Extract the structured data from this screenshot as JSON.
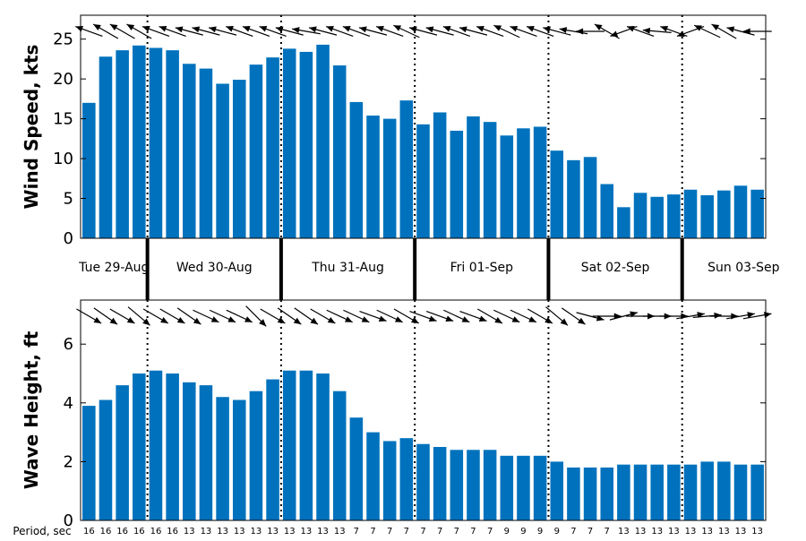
{
  "chart_data": [
    {
      "type": "bar",
      "ylabel": "Wind Speed, kts",
      "ylim": [
        0,
        28
      ],
      "yticks": [
        0,
        5,
        10,
        15,
        20,
        25
      ],
      "values": [
        17.0,
        22.8,
        23.6,
        24.2,
        23.9,
        23.6,
        21.9,
        21.3,
        19.4,
        19.9,
        21.8,
        22.7,
        23.8,
        23.4,
        24.3,
        21.7,
        17.1,
        15.4,
        15.0,
        17.3,
        14.3,
        15.8,
        13.5,
        15.3,
        14.6,
        12.9,
        13.8,
        14.0,
        11.0,
        9.8,
        10.2,
        6.8,
        3.9,
        5.7,
        5.2,
        5.5,
        6.1,
        5.4,
        6.0,
        6.6,
        6.1
      ],
      "direction_arrows": [
        290,
        300,
        300,
        300,
        290,
        290,
        285,
        285,
        285,
        290,
        290,
        290,
        285,
        280,
        285,
        290,
        290,
        285,
        290,
        295,
        285,
        285,
        290,
        285,
        290,
        295,
        290,
        290,
        285,
        280,
        270,
        300,
        250,
        290,
        275,
        290,
        250,
        295,
        300,
        285,
        270
      ]
    },
    {
      "type": "bar",
      "ylabel": "Wave Height, ft",
      "ylim": [
        0,
        7.5
      ],
      "yticks": [
        0,
        2,
        4,
        6
      ],
      "values": [
        3.9,
        4.1,
        4.6,
        5.0,
        5.1,
        5.0,
        4.7,
        4.6,
        4.2,
        4.1,
        4.4,
        4.8,
        5.1,
        5.1,
        5.0,
        4.4,
        3.5,
        3.0,
        2.7,
        2.8,
        2.6,
        2.5,
        2.4,
        2.4,
        2.4,
        2.2,
        2.2,
        2.2,
        2.0,
        1.8,
        1.8,
        1.8,
        1.9,
        1.9,
        1.9,
        1.9,
        1.9,
        2.0,
        2.0,
        1.9,
        1.9
      ],
      "direction_arrows": [
        120,
        125,
        120,
        130,
        120,
        120,
        125,
        115,
        115,
        115,
        135,
        120,
        125,
        125,
        120,
        115,
        115,
        110,
        115,
        120,
        110,
        110,
        115,
        110,
        120,
        115,
        115,
        120,
        130,
        125,
        105,
        90,
        75,
        90,
        90,
        90,
        80,
        85,
        90,
        80,
        80
      ],
      "period_label": "Period, sec",
      "periods": [
        "16",
        "16",
        "16",
        "16",
        "16",
        "16",
        "13",
        "13",
        "13",
        "13",
        "13",
        "13",
        "13",
        "13",
        "13",
        "13",
        "7",
        "7",
        "7",
        "7",
        "7",
        "7",
        "7",
        "7",
        "7",
        "9",
        "9",
        "9",
        "9",
        "7",
        "7",
        "7",
        "13",
        "13",
        "13",
        "13",
        "13",
        "13",
        "13",
        "13",
        "13"
      ]
    }
  ],
  "days": [
    "Tue 29-Aug",
    "Wed 30-Aug",
    "Thu 31-Aug",
    "Fri 01-Sep",
    "Sat 02-Sep",
    "Sun 03-Sep"
  ],
  "day_boundaries": [
    3.5,
    11.5,
    19.5,
    27.5,
    35.5
  ],
  "colors": {
    "bar": "#0072bd",
    "axis": "#000000",
    "arrow": "#000000"
  }
}
